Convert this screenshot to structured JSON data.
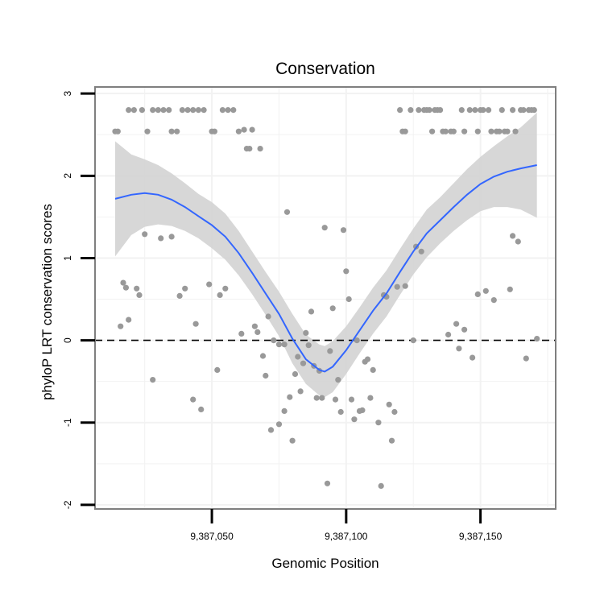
{
  "chart_data": {
    "type": "scatter",
    "title": "Conservation",
    "xlabel": "Genomic Position",
    "ylabel": "phyloP LRT conservation scores",
    "xlim": [
      9387006.5,
      9387178
    ],
    "ylim": [
      -2.05,
      3.08
    ],
    "x_ticks": [
      9387050,
      9387100,
      9387150
    ],
    "x_tick_labels": [
      "9,387,050",
      "9,387,100",
      "9,387,150"
    ],
    "y_ticks": [
      -2,
      -1,
      0,
      1,
      2,
      3
    ],
    "y_tick_labels": [
      "-2",
      "-1",
      "0",
      "1",
      "2",
      "3"
    ],
    "grid": true,
    "colors": {
      "points": "#999999",
      "smooth_line": "#3366FF",
      "confidence_band": "#D3D3D3",
      "reference_line": "#000000",
      "panel_border": "#7F7F7F",
      "grid": "#F2F2F2"
    },
    "reference_line": {
      "y": 0,
      "style": "dashed"
    },
    "points": [
      {
        "x": 9387014,
        "y": 2.54
      },
      {
        "x": 9387015,
        "y": 2.54
      },
      {
        "x": 9387019,
        "y": 2.8
      },
      {
        "x": 9387021,
        "y": 2.8
      },
      {
        "x": 9387024,
        "y": 2.8
      },
      {
        "x": 9387026,
        "y": 2.54
      },
      {
        "x": 9387028,
        "y": 2.8
      },
      {
        "x": 9387030,
        "y": 2.8
      },
      {
        "x": 9387032,
        "y": 2.8
      },
      {
        "x": 9387034,
        "y": 2.8
      },
      {
        "x": 9387035,
        "y": 2.54
      },
      {
        "x": 9387037,
        "y": 2.54
      },
      {
        "x": 9387039,
        "y": 2.8
      },
      {
        "x": 9387041,
        "y": 2.8
      },
      {
        "x": 9387043,
        "y": 2.8
      },
      {
        "x": 9387045,
        "y": 2.8
      },
      {
        "x": 9387047,
        "y": 2.8
      },
      {
        "x": 9387050,
        "y": 2.54
      },
      {
        "x": 9387051,
        "y": 2.54
      },
      {
        "x": 9387054,
        "y": 2.8
      },
      {
        "x": 9387056,
        "y": 2.8
      },
      {
        "x": 9387058,
        "y": 2.8
      },
      {
        "x": 9387060,
        "y": 2.54
      },
      {
        "x": 9387062,
        "y": 2.56
      },
      {
        "x": 9387063,
        "y": 2.33
      },
      {
        "x": 9387064,
        "y": 2.33
      },
      {
        "x": 9387065,
        "y": 2.56
      },
      {
        "x": 9387068,
        "y": 2.33
      },
      {
        "x": 9387016,
        "y": 0.17
      },
      {
        "x": 9387017,
        "y": 0.7
      },
      {
        "x": 9387018,
        "y": 0.64
      },
      {
        "x": 9387019,
        "y": 0.25
      },
      {
        "x": 9387022,
        "y": 0.63
      },
      {
        "x": 9387023,
        "y": 0.55
      },
      {
        "x": 9387025,
        "y": 1.29
      },
      {
        "x": 9387028,
        "y": -0.48
      },
      {
        "x": 9387031,
        "y": 1.24
      },
      {
        "x": 9387035,
        "y": 1.26
      },
      {
        "x": 9387038,
        "y": 0.54
      },
      {
        "x": 9387040,
        "y": 0.63
      },
      {
        "x": 9387043,
        "y": -0.72
      },
      {
        "x": 9387044,
        "y": 0.2
      },
      {
        "x": 9387046,
        "y": -0.84
      },
      {
        "x": 9387049,
        "y": 0.68
      },
      {
        "x": 9387052,
        "y": -0.36
      },
      {
        "x": 9387053,
        "y": 0.55
      },
      {
        "x": 9387055,
        "y": 0.63
      },
      {
        "x": 9387061,
        "y": 0.08
      },
      {
        "x": 9387066,
        "y": 0.17
      },
      {
        "x": 9387067,
        "y": 0.1
      },
      {
        "x": 9387069,
        "y": -0.19
      },
      {
        "x": 9387070,
        "y": -0.43
      },
      {
        "x": 9387071,
        "y": 0.29
      },
      {
        "x": 9387072,
        "y": -1.09
      },
      {
        "x": 9387073,
        "y": 0.0
      },
      {
        "x": 9387075,
        "y": -1.02
      },
      {
        "x": 9387075,
        "y": -0.05
      },
      {
        "x": 9387077,
        "y": -0.86
      },
      {
        "x": 9387077,
        "y": -0.05
      },
      {
        "x": 9387078,
        "y": 1.56
      },
      {
        "x": 9387079,
        "y": -0.69
      },
      {
        "x": 9387080,
        "y": -1.22
      },
      {
        "x": 9387081,
        "y": -0.41
      },
      {
        "x": 9387082,
        "y": -0.2
      },
      {
        "x": 9387083,
        "y": -0.62
      },
      {
        "x": 9387084,
        "y": -0.28
      },
      {
        "x": 9387085,
        "y": 0.09
      },
      {
        "x": 9387086,
        "y": -0.06
      },
      {
        "x": 9387087,
        "y": 0.35
      },
      {
        "x": 9387088,
        "y": -0.31
      },
      {
        "x": 9387089,
        "y": -0.7
      },
      {
        "x": 9387090,
        "y": -0.37
      },
      {
        "x": 9387091,
        "y": -0.7
      },
      {
        "x": 9387092,
        "y": 1.37
      },
      {
        "x": 9387093,
        "y": -1.74
      },
      {
        "x": 9387094,
        "y": -0.13
      },
      {
        "x": 9387095,
        "y": 0.39
      },
      {
        "x": 9387096,
        "y": -0.72
      },
      {
        "x": 9387097,
        "y": -0.48
      },
      {
        "x": 9387098,
        "y": -0.87
      },
      {
        "x": 9387099,
        "y": 1.34
      },
      {
        "x": 9387100,
        "y": 0.84
      },
      {
        "x": 9387101,
        "y": 0.5
      },
      {
        "x": 9387102,
        "y": -0.72
      },
      {
        "x": 9387103,
        "y": -0.96
      },
      {
        "x": 9387104,
        "y": 0.0
      },
      {
        "x": 9387105,
        "y": -0.86
      },
      {
        "x": 9387106,
        "y": -0.85
      },
      {
        "x": 9387107,
        "y": -0.26
      },
      {
        "x": 9387108,
        "y": -0.23
      },
      {
        "x": 9387109,
        "y": -0.7
      },
      {
        "x": 9387110,
        "y": -0.36
      },
      {
        "x": 9387112,
        "y": -1.0
      },
      {
        "x": 9387113,
        "y": -1.77
      },
      {
        "x": 9387114,
        "y": 0.55
      },
      {
        "x": 9387115,
        "y": 0.53
      },
      {
        "x": 9387116,
        "y": -0.78
      },
      {
        "x": 9387117,
        "y": -1.22
      },
      {
        "x": 9387118,
        "y": -0.87
      },
      {
        "x": 9387119,
        "y": 0.65
      },
      {
        "x": 9387120,
        "y": 2.8
      },
      {
        "x": 9387121,
        "y": 2.54
      },
      {
        "x": 9387122,
        "y": 2.54
      },
      {
        "x": 9387122,
        "y": 0.66
      },
      {
        "x": 9387124,
        "y": 2.8
      },
      {
        "x": 9387125,
        "y": 0.0
      },
      {
        "x": 9387126,
        "y": 1.14
      },
      {
        "x": 9387127,
        "y": 2.8
      },
      {
        "x": 9387128,
        "y": 1.08
      },
      {
        "x": 9387129,
        "y": 2.8
      },
      {
        "x": 9387130,
        "y": 2.8
      },
      {
        "x": 9387131,
        "y": 2.8
      },
      {
        "x": 9387132,
        "y": 2.54
      },
      {
        "x": 9387133,
        "y": 2.8
      },
      {
        "x": 9387134,
        "y": 2.8
      },
      {
        "x": 9387135,
        "y": 2.8
      },
      {
        "x": 9387136,
        "y": 2.54
      },
      {
        "x": 9387137,
        "y": 2.54
      },
      {
        "x": 9387138,
        "y": 0.07
      },
      {
        "x": 9387139,
        "y": 2.54
      },
      {
        "x": 9387140,
        "y": 2.54
      },
      {
        "x": 9387141,
        "y": 0.2
      },
      {
        "x": 9387142,
        "y": -0.1
      },
      {
        "x": 9387143,
        "y": 2.8
      },
      {
        "x": 9387144,
        "y": 0.13
      },
      {
        "x": 9387144,
        "y": 2.54
      },
      {
        "x": 9387146,
        "y": 2.8
      },
      {
        "x": 9387147,
        "y": -0.21
      },
      {
        "x": 9387148,
        "y": 2.8
      },
      {
        "x": 9387149,
        "y": 2.54
      },
      {
        "x": 9387149,
        "y": 0.56
      },
      {
        "x": 9387150,
        "y": 2.8
      },
      {
        "x": 9387151,
        "y": 2.8
      },
      {
        "x": 9387152,
        "y": 0.6
      },
      {
        "x": 9387153,
        "y": 2.8
      },
      {
        "x": 9387154,
        "y": 2.54
      },
      {
        "x": 9387155,
        "y": 0.49
      },
      {
        "x": 9387156,
        "y": 2.54
      },
      {
        "x": 9387157,
        "y": 2.54
      },
      {
        "x": 9387158,
        "y": 2.8
      },
      {
        "x": 9387159,
        "y": 2.54
      },
      {
        "x": 9387160,
        "y": 2.54
      },
      {
        "x": 9387161,
        "y": 0.62
      },
      {
        "x": 9387162,
        "y": 1.27
      },
      {
        "x": 9387162,
        "y": 2.8
      },
      {
        "x": 9387163,
        "y": 2.54
      },
      {
        "x": 9387164,
        "y": 1.2
      },
      {
        "x": 9387165,
        "y": 2.8
      },
      {
        "x": 9387166,
        "y": 2.8
      },
      {
        "x": 9387167,
        "y": -0.22
      },
      {
        "x": 9387168,
        "y": 2.8
      },
      {
        "x": 9387169,
        "y": 2.8
      },
      {
        "x": 9387170,
        "y": 2.8
      },
      {
        "x": 9387171,
        "y": 0.02
      }
    ],
    "smooth_line": {
      "x": [
        9387014,
        9387020,
        9387025,
        9387030,
        9387035,
        9387040,
        9387045,
        9387050,
        9387055,
        9387060,
        9387065,
        9387070,
        9387075,
        9387080,
        9387085,
        9387090,
        9387092,
        9387095,
        9387100,
        9387105,
        9387110,
        9387115,
        9387120,
        9387125,
        9387130,
        9387135,
        9387140,
        9387145,
        9387150,
        9387155,
        9387160,
        9387165,
        9387171
      ],
      "y": [
        1.72,
        1.77,
        1.79,
        1.77,
        1.71,
        1.62,
        1.51,
        1.4,
        1.26,
        1.06,
        0.82,
        0.57,
        0.32,
        0.02,
        -0.23,
        -0.36,
        -0.38,
        -0.32,
        -0.12,
        0.12,
        0.36,
        0.57,
        0.83,
        1.08,
        1.3,
        1.46,
        1.62,
        1.77,
        1.9,
        1.99,
        2.05,
        2.09,
        2.13
      ]
    },
    "confidence_band": {
      "x": [
        9387014,
        9387020,
        9387025,
        9387030,
        9387035,
        9387040,
        9387045,
        9387050,
        9387055,
        9387060,
        9387065,
        9387070,
        9387075,
        9387080,
        9387085,
        9387090,
        9387092,
        9387095,
        9387100,
        9387105,
        9387110,
        9387115,
        9387120,
        9387125,
        9387130,
        9387135,
        9387140,
        9387145,
        9387150,
        9387155,
        9387160,
        9387165,
        9387171
      ],
      "lower": [
        1.02,
        1.28,
        1.38,
        1.41,
        1.39,
        1.33,
        1.24,
        1.12,
        0.98,
        0.79,
        0.56,
        0.31,
        0.05,
        -0.28,
        -0.53,
        -0.67,
        -0.69,
        -0.63,
        -0.41,
        -0.16,
        0.08,
        0.29,
        0.55,
        0.8,
        1.01,
        1.18,
        1.33,
        1.46,
        1.57,
        1.62,
        1.62,
        1.59,
        1.49
      ],
      "upper": [
        2.42,
        2.26,
        2.2,
        2.13,
        2.03,
        1.91,
        1.78,
        1.68,
        1.54,
        1.33,
        1.08,
        0.83,
        0.59,
        0.32,
        0.07,
        -0.05,
        -0.07,
        -0.01,
        0.17,
        0.4,
        0.64,
        0.85,
        1.11,
        1.36,
        1.59,
        1.74,
        1.91,
        2.08,
        2.23,
        2.36,
        2.48,
        2.59,
        2.77
      ]
    }
  }
}
